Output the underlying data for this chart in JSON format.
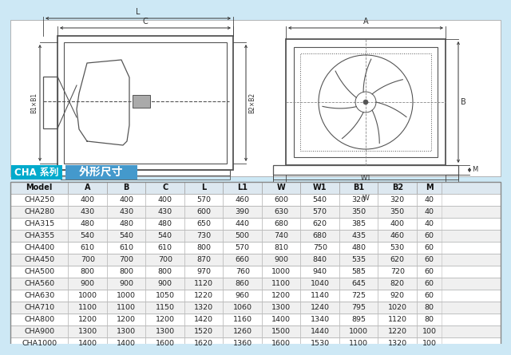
{
  "title_left": "CHA 系列",
  "title_right": "外形尺寸",
  "columns": [
    "Model",
    "A",
    "B",
    "C",
    "L",
    "L1",
    "W",
    "W1",
    "B1",
    "B2",
    "M"
  ],
  "rows": [
    [
      "CHA250",
      400,
      400,
      400,
      570,
      460,
      600,
      540,
      320,
      320,
      40
    ],
    [
      "CHA280",
      430,
      430,
      430,
      600,
      390,
      630,
      570,
      350,
      350,
      40
    ],
    [
      "CHA315",
      480,
      480,
      480,
      650,
      440,
      680,
      620,
      385,
      400,
      40
    ],
    [
      "CHA355",
      540,
      540,
      540,
      730,
      500,
      740,
      680,
      435,
      460,
      60
    ],
    [
      "CHA400",
      610,
      610,
      610,
      800,
      570,
      810,
      750,
      480,
      530,
      60
    ],
    [
      "CHA450",
      700,
      700,
      700,
      870,
      660,
      900,
      840,
      535,
      620,
      60
    ],
    [
      "CHA500",
      800,
      800,
      800,
      970,
      760,
      1000,
      940,
      585,
      720,
      60
    ],
    [
      "CHA560",
      900,
      900,
      900,
      1120,
      860,
      1100,
      1040,
      645,
      820,
      60
    ],
    [
      "CHA630",
      1000,
      1000,
      1050,
      1220,
      960,
      1200,
      1140,
      725,
      920,
      60
    ],
    [
      "CHA710",
      1100,
      1100,
      1150,
      1320,
      1060,
      1300,
      1240,
      795,
      1020,
      80
    ],
    [
      "CHA800",
      1200,
      1200,
      1200,
      1420,
      1160,
      1400,
      1340,
      895,
      1120,
      80
    ],
    [
      "CHA900",
      1300,
      1300,
      1300,
      1520,
      1260,
      1500,
      1440,
      1000,
      1220,
      100
    ],
    [
      "CHA1000",
      1400,
      1400,
      1600,
      1620,
      1360,
      1600,
      1530,
      1100,
      1320,
      100
    ]
  ],
  "bg_color": "#cde8f5",
  "diag_bg": "#ffffff",
  "title_left_bg": "#00aacc",
  "title_right_bg": "#4499cc",
  "row_even_bg": "#ffffff",
  "row_odd_bg": "#f0f0f0",
  "header_bg": "#dde8f0",
  "line_color": "#555555",
  "text_color": "#222222"
}
